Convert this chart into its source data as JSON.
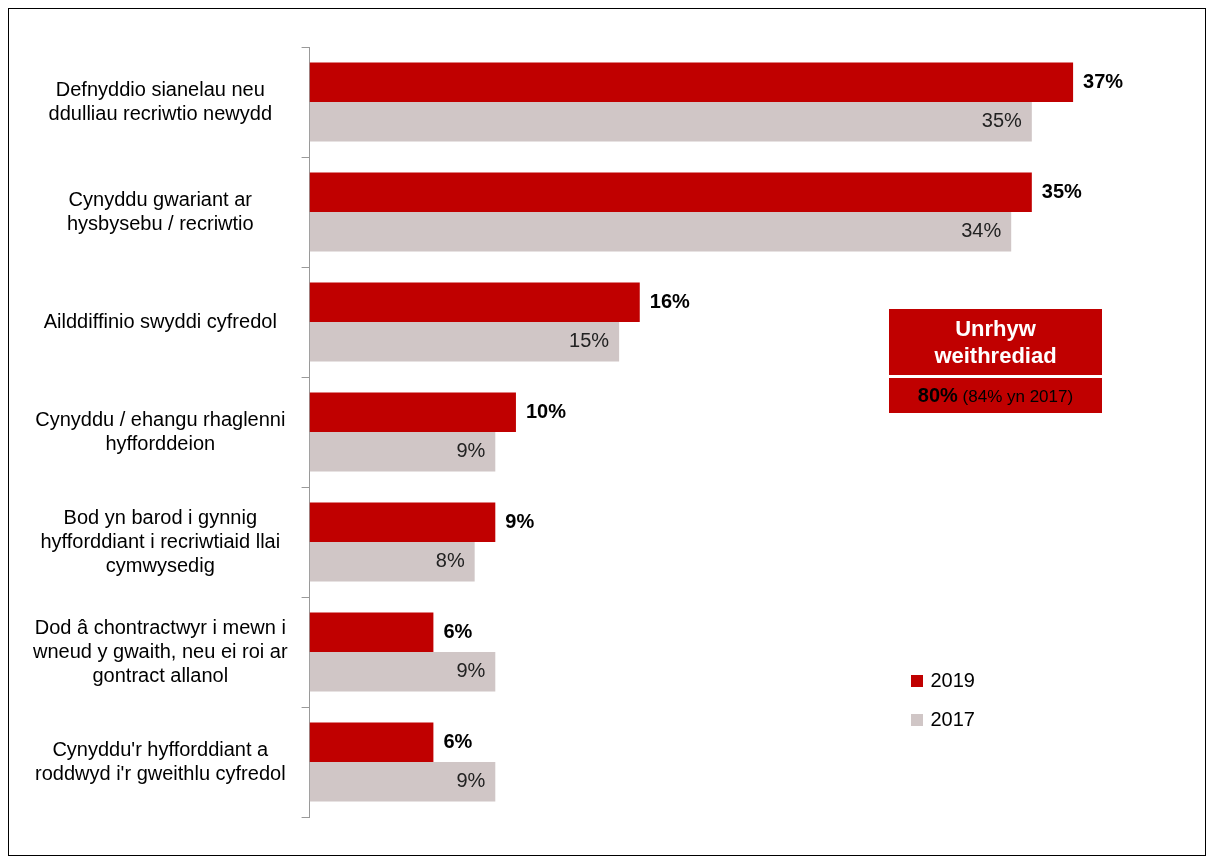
{
  "chart_data": {
    "type": "bar",
    "orientation": "horizontal",
    "categories": [
      "Defnyddio sianelau neu ddulliau recriwtio newydd",
      "Cynyddu gwariant ar hysbysebu / recriwtio",
      "Ailddiffinio swyddi cyfredol",
      "Cynyddu / ehangu rhaglenni hyfforddeion",
      "Bod yn barod i gynnig hyfforddiant i recriwtiaid llai cymwysedig",
      "Dod â chontractwyr i mewn i wneud y gwaith, neu ei roi ar gontract allanol",
      "Cynyddu'r hyfforddiant a roddwyd i'r gweithlu cyfredol"
    ],
    "series": [
      {
        "name": "2019",
        "color": "#c00000",
        "values": [
          37,
          35,
          16,
          10,
          9,
          6,
          6
        ],
        "value_labels": [
          "37%",
          "35%",
          "16%",
          "10%",
          "9%",
          "6%",
          "6%"
        ]
      },
      {
        "name": "2017",
        "color": "#d0c6c6",
        "values": [
          35,
          34,
          15,
          9,
          8,
          9,
          9
        ],
        "value_labels": [
          "35%",
          "34%",
          "15%",
          "9%",
          "8%",
          "9%",
          "9%"
        ]
      }
    ],
    "annotations": [
      "Unrhyw weithrediad",
      "80% (84% yn 2017)"
    ],
    "legend": "right",
    "grid": false
  }
}
